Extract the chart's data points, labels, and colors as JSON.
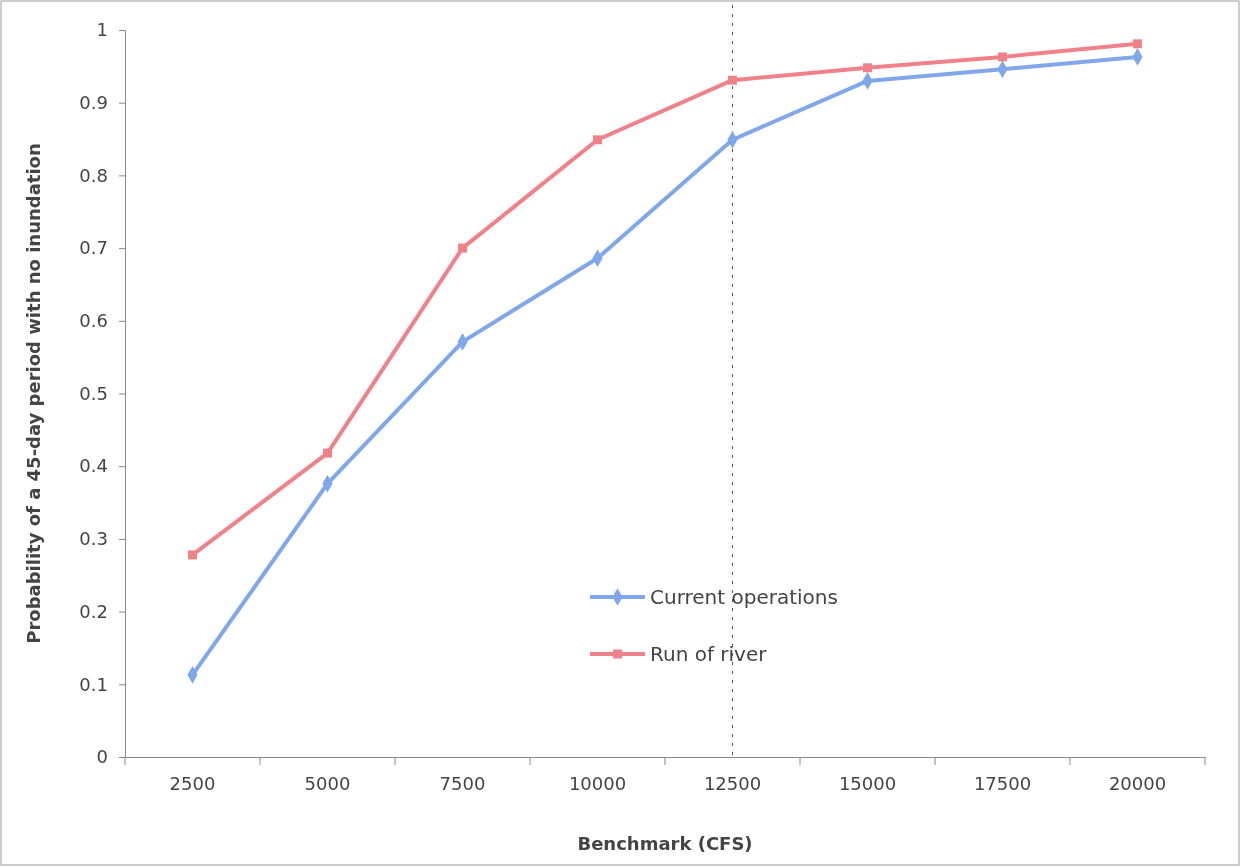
{
  "chart_data": {
    "type": "line",
    "xlabel": "Benchmark (CFS)",
    "ylabel": "Probability of a 45-day period with no inundation",
    "categories": [
      "2500",
      "5000",
      "7500",
      "10000",
      "12500",
      "15000",
      "17500",
      "20000"
    ],
    "series": [
      {
        "name": "Current operations",
        "color": "#7fa7ea",
        "marker": "diamond",
        "values": [
          0.113,
          0.376,
          0.571,
          0.686,
          0.849,
          0.93,
          0.946,
          0.963
        ]
      },
      {
        "name": "Run of river",
        "color": "#f0808a",
        "marker": "square",
        "values": [
          0.278,
          0.418,
          0.7,
          0.849,
          0.931,
          0.948,
          0.963,
          0.981
        ]
      }
    ],
    "ylim": [
      0,
      1
    ],
    "yticks": [
      0,
      0.1,
      0.2,
      0.3,
      0.4,
      0.5,
      0.6,
      0.7,
      0.8,
      0.9,
      1
    ],
    "ref_lines": [
      {
        "axis": "x",
        "value": "12500",
        "color": "#555555",
        "line_style": "dotted"
      }
    ],
    "grid": false,
    "legend": "bottom",
    "line_style": "solid"
  }
}
